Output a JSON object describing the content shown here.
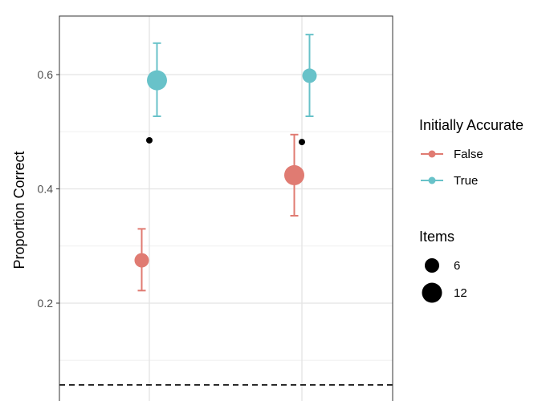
{
  "chart_data": {
    "type": "scatter",
    "ylabel": "Proportion Correct",
    "xlabel": "",
    "ylim": [
      0.05,
      0.71
    ],
    "y_ticks": [
      0.2,
      0.4,
      0.6
    ],
    "y_tick_labels": [
      "0.2",
      "0.4",
      "0.6"
    ],
    "x_positions": [
      1,
      2
    ],
    "grid": true,
    "legend_placement": "right",
    "reference_line": {
      "y": 0.057,
      "style": "dashed"
    },
    "series": [
      {
        "name": "False",
        "color": "#e07b72",
        "points": [
          {
            "x": 0.95,
            "y": 0.275,
            "lower": 0.222,
            "upper": 0.33,
            "items": 6
          },
          {
            "x": 1.95,
            "y": 0.424,
            "lower": 0.353,
            "upper": 0.495,
            "items": 12
          }
        ]
      },
      {
        "name": "True",
        "color": "#68c2c9",
        "points": [
          {
            "x": 1.05,
            "y": 0.59,
            "lower": 0.527,
            "upper": 0.655,
            "items": 12
          },
          {
            "x": 2.05,
            "y": 0.598,
            "lower": 0.527,
            "upper": 0.67,
            "items": 6
          }
        ]
      }
    ],
    "reference_points": [
      {
        "x": 1.0,
        "y": 0.485
      },
      {
        "x": 2.0,
        "y": 0.482
      }
    ],
    "legend": {
      "color_title": "Initially Accurate",
      "color_entries": [
        "False",
        "True"
      ],
      "size_title": "Items",
      "size_entries": [
        "6",
        "12"
      ]
    }
  }
}
